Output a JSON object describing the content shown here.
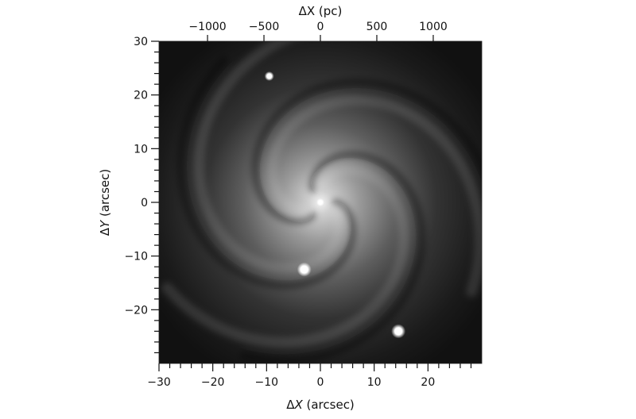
{
  "chart_data": {
    "type": "heatmap",
    "description_source": "grayscale galaxy image with offset axes",
    "colormap": "gray",
    "xlabel_prefix": "Δ",
    "xlabel_var": "X",
    "xlabel_unit": " (arcsec)",
    "ylabel_prefix": "Δ",
    "ylabel_var": "Y",
    "ylabel_unit": " (arcsec)",
    "top_xlabel": "ΔX (pc)",
    "xlim": [
      -30,
      30
    ],
    "ylim": [
      -30,
      30
    ],
    "top_xlim_pc": [
      -1430,
      1430
    ],
    "x_ticks": [
      -30,
      -20,
      -10,
      0,
      10,
      20
    ],
    "x_tick_labels": [
      "−30",
      "−20",
      "−10",
      "0",
      "10",
      "20"
    ],
    "y_ticks": [
      30,
      20,
      10,
      0,
      -10,
      -20
    ],
    "y_tick_labels": [
      "30",
      "20",
      "10",
      "0",
      "−10",
      "−20"
    ],
    "top_ticks_pc": [
      -1000,
      -500,
      0,
      500,
      1000
    ],
    "top_tick_labels": [
      "−1000",
      "−500",
      "0",
      "500",
      "1000"
    ],
    "minor_tick_step": 2,
    "point_sources": [
      {
        "x": 0,
        "y": 0,
        "brightness": "nucleus"
      },
      {
        "x": -3,
        "y": -12.5,
        "brightness": "bright"
      },
      {
        "x": -9.5,
        "y": 23.5,
        "brightness": "medium"
      },
      {
        "x": 14.5,
        "y": -24,
        "brightness": "bright"
      }
    ]
  }
}
